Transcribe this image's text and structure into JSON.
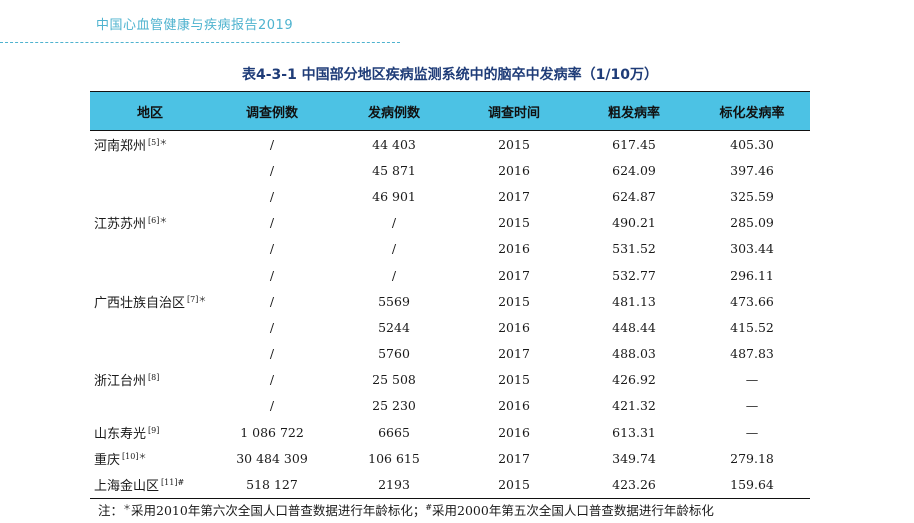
{
  "header": {
    "text": "中国心血管健康与疾病报告2019"
  },
  "table": {
    "title": "表4-3-1    中国部分地区疾病监测系统中的脑卒中发病率（1/10万）",
    "columns": [
      "地区",
      "调查例数",
      "发病例数",
      "调查时间",
      "粗发病率",
      "标化发病率"
    ],
    "rows": [
      {
        "region": "河南郑州",
        "ref": "[5]＊",
        "surveyed": "/",
        "cases": "44 403",
        "year": "2015",
        "crude": "617.45",
        "standardized": "405.30"
      },
      {
        "region": "",
        "ref": "",
        "surveyed": "/",
        "cases": "45 871",
        "year": "2016",
        "crude": "624.09",
        "standardized": "397.46"
      },
      {
        "region": "",
        "ref": "",
        "surveyed": "/",
        "cases": "46 901",
        "year": "2017",
        "crude": "624.87",
        "standardized": "325.59"
      },
      {
        "region": "江苏苏州",
        "ref": "[6]＊",
        "surveyed": "/",
        "cases": "/",
        "year": "2015",
        "crude": "490.21",
        "standardized": "285.09"
      },
      {
        "region": "",
        "ref": "",
        "surveyed": "/",
        "cases": "/",
        "year": "2016",
        "crude": "531.52",
        "standardized": "303.44"
      },
      {
        "region": "",
        "ref": "",
        "surveyed": "/",
        "cases": "/",
        "year": "2017",
        "crude": "532.77",
        "standardized": "296.11"
      },
      {
        "region": "广西壮族自治区",
        "ref": "[7]＊",
        "surveyed": "/",
        "cases": "5569",
        "year": "2015",
        "crude": "481.13",
        "standardized": "473.66"
      },
      {
        "region": "",
        "ref": "",
        "surveyed": "/",
        "cases": "5244",
        "year": "2016",
        "crude": "448.44",
        "standardized": "415.52"
      },
      {
        "region": "",
        "ref": "",
        "surveyed": "/",
        "cases": "5760",
        "year": "2017",
        "crude": "488.03",
        "standardized": "487.83"
      },
      {
        "region": "浙江台州",
        "ref": "[8]",
        "surveyed": "/",
        "cases": "25 508",
        "year": "2015",
        "crude": "426.92",
        "standardized": "—"
      },
      {
        "region": "",
        "ref": "",
        "surveyed": "/",
        "cases": "25 230",
        "year": "2016",
        "crude": "421.32",
        "standardized": "—"
      },
      {
        "region": "山东寿光",
        "ref": "[9]",
        "surveyed": "1 086 722",
        "cases": "6665",
        "year": "2016",
        "crude": "613.31",
        "standardized": "—"
      },
      {
        "region": "重庆",
        "ref": "[10]＊",
        "surveyed": "30 484 309",
        "cases": "106 615",
        "year": "2017",
        "crude": "349.74",
        "standardized": "279.18"
      },
      {
        "region": "上海金山区",
        "ref": "[11]#",
        "surveyed": "518 127",
        "cases": "2193",
        "year": "2015",
        "crude": "423.26",
        "standardized": "159.64"
      }
    ]
  },
  "note": {
    "prefix": "注：",
    "star_mark": "＊",
    "part1": "采用2010年第六次全国人口普查数据进行年龄标化；",
    "hash_mark": "#",
    "part2": "采用2000年第五次全国人口普查数据进行年龄标化"
  }
}
